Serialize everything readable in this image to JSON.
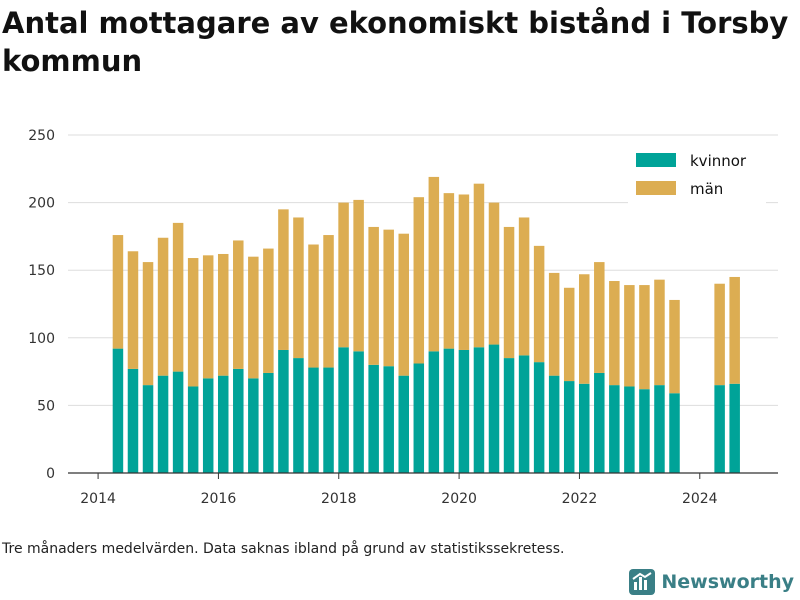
{
  "title": "Antal mottagare av ekonomiskt bistånd i Torsby kommun",
  "footnote": "Tre månaders medelvärden. Data saknas ibland på grund av statistikssekretess.",
  "brand": {
    "name": "Newsworthy",
    "icon": "bar-chart-logo-icon",
    "color": "#3a7f86"
  },
  "colors": {
    "kvinnor": "#00a398",
    "man": "#dcad52",
    "grid": "#dddddd",
    "axis": "#333333"
  },
  "chart_data": {
    "type": "bar",
    "stacked": true,
    "xlim": [
      2013.5,
      2025.3
    ],
    "ylim": [
      0,
      250
    ],
    "yticks": [
      0,
      50,
      100,
      150,
      200,
      250
    ],
    "xticks": [
      2014,
      2016,
      2018,
      2020,
      2022,
      2024
    ],
    "grid": "horizontal",
    "legend_position": "top-right",
    "x": [
      2014.33,
      2014.58,
      2014.83,
      2015.08,
      2015.33,
      2015.58,
      2015.83,
      2016.08,
      2016.33,
      2016.58,
      2016.83,
      2017.08,
      2017.33,
      2017.58,
      2017.83,
      2018.08,
      2018.33,
      2018.58,
      2018.83,
      2019.08,
      2019.33,
      2019.58,
      2019.83,
      2020.08,
      2020.33,
      2020.58,
      2020.83,
      2021.08,
      2021.33,
      2021.58,
      2021.83,
      2022.08,
      2022.33,
      2022.58,
      2022.83,
      2023.08,
      2023.33,
      2023.58,
      2024.33,
      2024.58
    ],
    "series": [
      {
        "name": "kvinnor",
        "color": "#00a398",
        "values": [
          92,
          77,
          65,
          72,
          75,
          64,
          70,
          72,
          77,
          70,
          74,
          91,
          85,
          78,
          78,
          93,
          90,
          80,
          79,
          72,
          81,
          90,
          92,
          91,
          93,
          95,
          85,
          87,
          82,
          72,
          68,
          66,
          74,
          65,
          64,
          62,
          65,
          59,
          65,
          66
        ]
      },
      {
        "name": "män",
        "color": "#dcad52",
        "values": [
          84,
          87,
          91,
          102,
          110,
          95,
          91,
          90,
          95,
          90,
          92,
          104,
          104,
          91,
          98,
          107,
          112,
          102,
          101,
          105,
          123,
          129,
          115,
          115,
          121,
          105,
          97,
          102,
          86,
          76,
          69,
          81,
          82,
          77,
          75,
          77,
          78,
          69,
          75,
          79
        ]
      }
    ]
  }
}
